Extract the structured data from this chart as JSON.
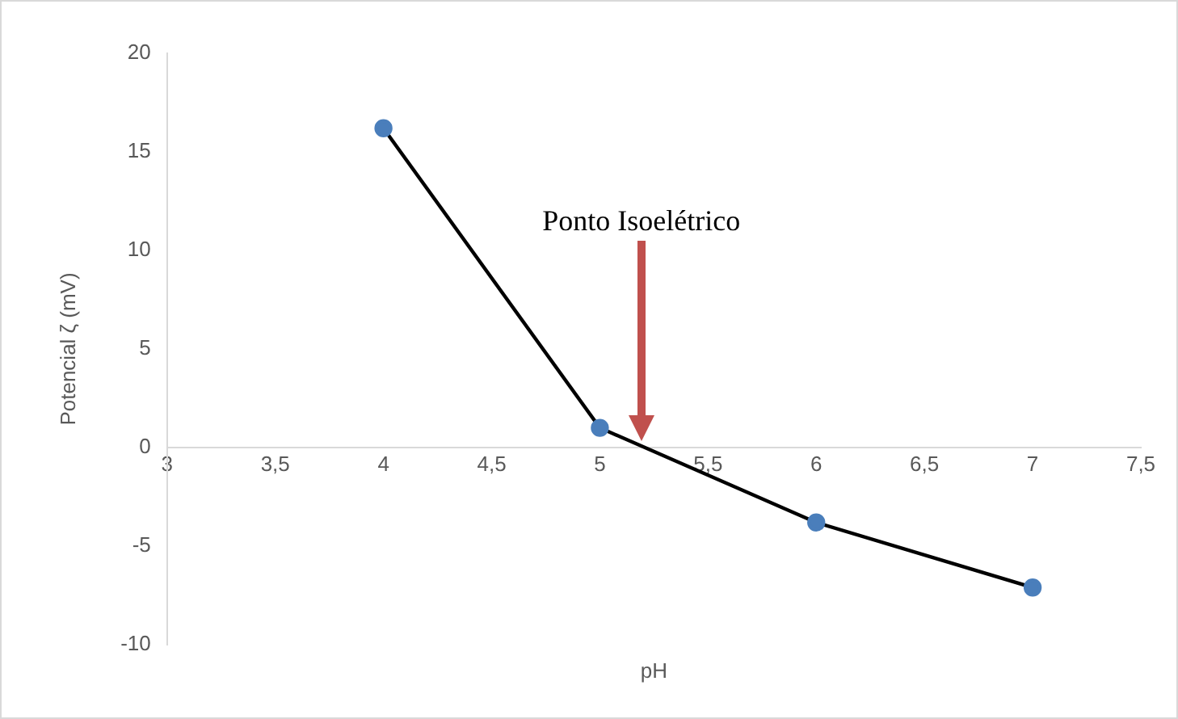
{
  "chart_data": {
    "type": "line",
    "xlabel": "pH",
    "ylabel": "Potencial ζ (mV)",
    "x": [
      4,
      5,
      6,
      7
    ],
    "series": [
      {
        "color": "#000000",
        "colors": [
          "#4a7ebb",
          "#4a7ebb",
          "#4a7ebb",
          "#4a7ebb"
        ],
        "values": [
          16.2,
          1.0,
          -3.8,
          -7.1
        ]
      }
    ],
    "xlim": [
      3,
      7.5
    ],
    "xticks": [
      3,
      {
        "value": 3.5,
        "label": "3,5"
      },
      4,
      {
        "value": 4.5,
        "label": "4,5"
      },
      5,
      {
        "value": 5.5,
        "label": "5,5"
      },
      6,
      {
        "value": 6.5,
        "label": "6,5"
      },
      7,
      {
        "value": 7.5,
        "label": "7,5"
      }
    ],
    "ylim": [
      -10,
      20
    ],
    "yticks": [
      -10,
      -5,
      0,
      5,
      10,
      15,
      20
    ],
    "grid": false,
    "legend": false,
    "marker": "circle",
    "line_style": "solid",
    "annotations": [
      "Ponto Isoelétrico"
    ]
  }
}
